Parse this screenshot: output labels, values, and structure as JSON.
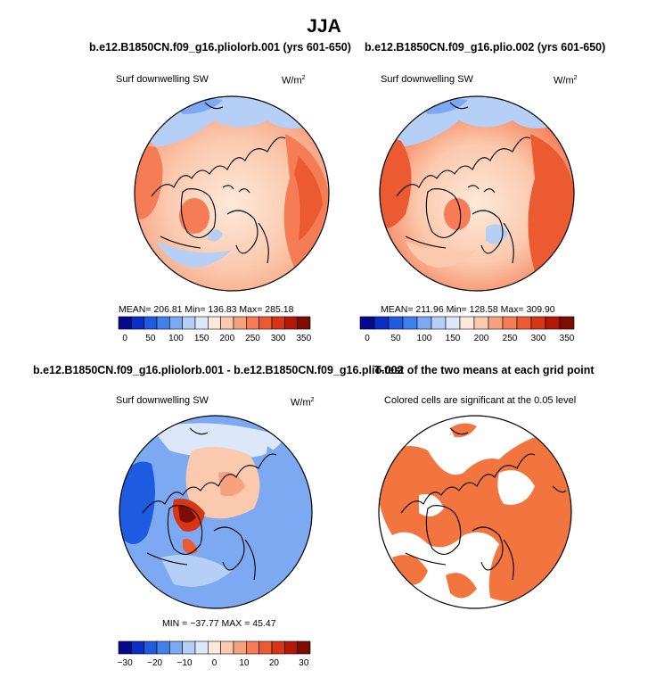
{
  "suptitle": "JJA",
  "palettes": {
    "main": [
      "#08088c",
      "#0a2ec4",
      "#1f5be0",
      "#3f80ea",
      "#7da9f2",
      "#b5cff7",
      "#dce8fa",
      "#fde9d9",
      "#fbc9ae",
      "#f8a17f",
      "#f57c55",
      "#ec5a32",
      "#d83416",
      "#b31706",
      "#7e0c05"
    ],
    "diff": [
      "#08088c",
      "#0a2ec4",
      "#1f5be0",
      "#3f80ea",
      "#7da9f2",
      "#b5cff7",
      "#dce8fa",
      "#fde9d9",
      "#fbc9ae",
      "#f8a17f",
      "#f57c55",
      "#ec5a32",
      "#d83416",
      "#b31706",
      "#7e0c05"
    ],
    "significant": "#f2753f"
  },
  "panels": [
    {
      "title": "b.e12.B1850CN.f09_g16.pliolorb.001 (yrs 601-650)",
      "left_label": "Surf downwelling SW",
      "units": "W/m",
      "units_sup": "2",
      "stats": "MEAN= 206.81   Min= 136.83   Max= 285.18",
      "colorbar_ticks": [
        "0",
        "50",
        "100",
        "150",
        "200",
        "250",
        "300",
        "350"
      ]
    },
    {
      "title": "b.e12.B1850CN.f09_g16.plio.002 (yrs 601-650)",
      "left_label": "Surf downwelling SW",
      "units": "W/m",
      "units_sup": "2",
      "stats": "MEAN= 211.96   Min= 128.58   Max= 309.90",
      "colorbar_ticks": [
        "0",
        "50",
        "100",
        "150",
        "200",
        "250",
        "300",
        "350"
      ]
    },
    {
      "title": "b.e12.B1850CN.f09_g16.pliolorb.001 - b.e12.B1850CN.f09_g16.plio.002",
      "left_label": "Surf downwelling SW",
      "units": "W/m",
      "units_sup": "2",
      "stats": "MIN = −37.77  MAX =  45.47",
      "colorbar_ticks": [
        "−30",
        "−20",
        "−10",
        "0",
        "10",
        "20",
        "30"
      ]
    },
    {
      "title": "T-test of the two means at each grid point",
      "left_label": "Colored cells are significant at the 0.05 level"
    }
  ],
  "chart_data": [
    {
      "type": "heatmap",
      "projection": "north polar stereographic",
      "title": "b.e12.B1850CN.f09_g16.pliolorb.001 (yrs 601-650)",
      "variable": "Surf downwelling SW",
      "units": "W/m2",
      "mean": 206.81,
      "min": 136.83,
      "max": 285.18,
      "levels": [
        0,
        25,
        50,
        75,
        100,
        125,
        150,
        175,
        200,
        225,
        250,
        275,
        300,
        325,
        350
      ]
    },
    {
      "type": "heatmap",
      "projection": "north polar stereographic",
      "title": "b.e12.B1850CN.f09_g16.plio.002 (yrs 601-650)",
      "variable": "Surf downwelling SW",
      "units": "W/m2",
      "mean": 211.96,
      "min": 128.58,
      "max": 309.9,
      "levels": [
        0,
        25,
        50,
        75,
        100,
        125,
        150,
        175,
        200,
        225,
        250,
        275,
        300,
        325,
        350
      ]
    },
    {
      "type": "heatmap",
      "projection": "north polar stereographic",
      "title": "b.e12.B1850CN.f09_g16.pliolorb.001 - b.e12.B1850CN.f09_g16.plio.002",
      "variable": "Surf downwelling SW",
      "units": "W/m2",
      "min": -37.77,
      "max": 45.47,
      "levels": [
        -35,
        -30,
        -25,
        -20,
        -15,
        -10,
        -5,
        0,
        5,
        10,
        15,
        20,
        25,
        30,
        35
      ]
    },
    {
      "type": "heatmap",
      "projection": "north polar stereographic",
      "title": "T-test of the two means at each grid point",
      "note": "Colored cells are significant at the 0.05 level",
      "significance_level": 0.05
    }
  ]
}
